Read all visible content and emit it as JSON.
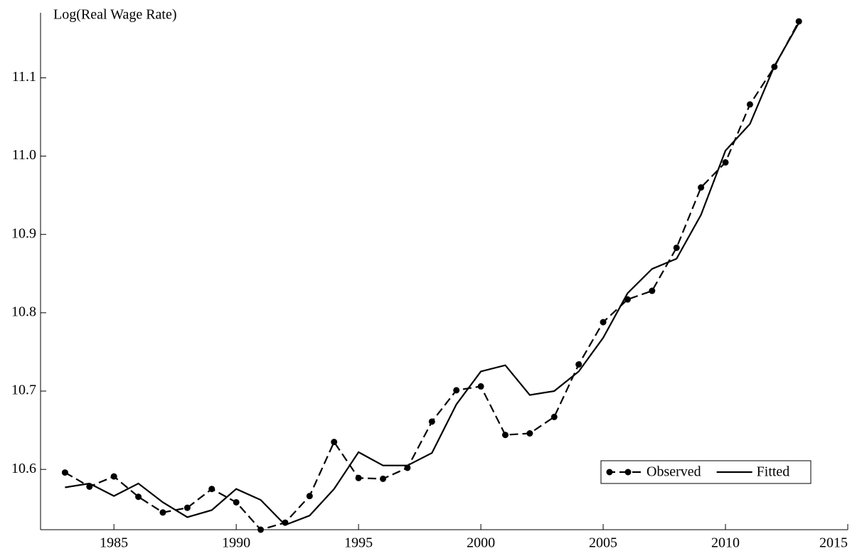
{
  "chart_data": {
    "type": "line",
    "ylabel": "Log(Real Wage Rate)",
    "x": [
      1983,
      1984,
      1985,
      1986,
      1987,
      1988,
      1989,
      1990,
      1991,
      1992,
      1993,
      1994,
      1995,
      1996,
      1997,
      1998,
      1999,
      2000,
      2001,
      2002,
      2003,
      2004,
      2005,
      2006,
      2007,
      2008,
      2009,
      2010,
      2011,
      2012,
      2013
    ],
    "series": [
      {
        "name": "Observed",
        "color": "#000000",
        "dashed": true,
        "markers": true,
        "values": [
          10.596,
          10.578,
          10.591,
          10.565,
          10.545,
          10.551,
          10.575,
          10.558,
          10.523,
          10.532,
          10.566,
          10.635,
          10.589,
          10.588,
          10.602,
          10.661,
          10.701,
          10.706,
          10.644,
          10.646,
          10.667,
          10.734,
          10.788,
          10.817,
          10.828,
          10.883,
          10.96,
          10.992,
          11.066,
          11.114,
          11.172
        ]
      },
      {
        "name": "Fitted",
        "color": "#000000",
        "dashed": false,
        "markers": false,
        "values": [
          10.577,
          10.582,
          10.566,
          10.582,
          10.558,
          10.539,
          10.548,
          10.575,
          10.561,
          10.529,
          10.541,
          10.575,
          10.622,
          10.605,
          10.605,
          10.621,
          10.683,
          10.725,
          10.733,
          10.695,
          10.7,
          10.725,
          10.768,
          10.825,
          10.856,
          10.869,
          10.925,
          11.007,
          11.041,
          11.115,
          11.17
        ]
      }
    ],
    "xlim": [
      1982,
      2015
    ],
    "xticks": [
      1985,
      1990,
      1995,
      2000,
      2005,
      2010,
      2015
    ],
    "ylim": [
      10.523,
      11.183
    ],
    "yticks": [
      10.6,
      10.7,
      10.8,
      10.9,
      {
        "value": 11,
        "label": "11.0"
      },
      11.1
    ],
    "grid": false,
    "legend": "lower right"
  }
}
